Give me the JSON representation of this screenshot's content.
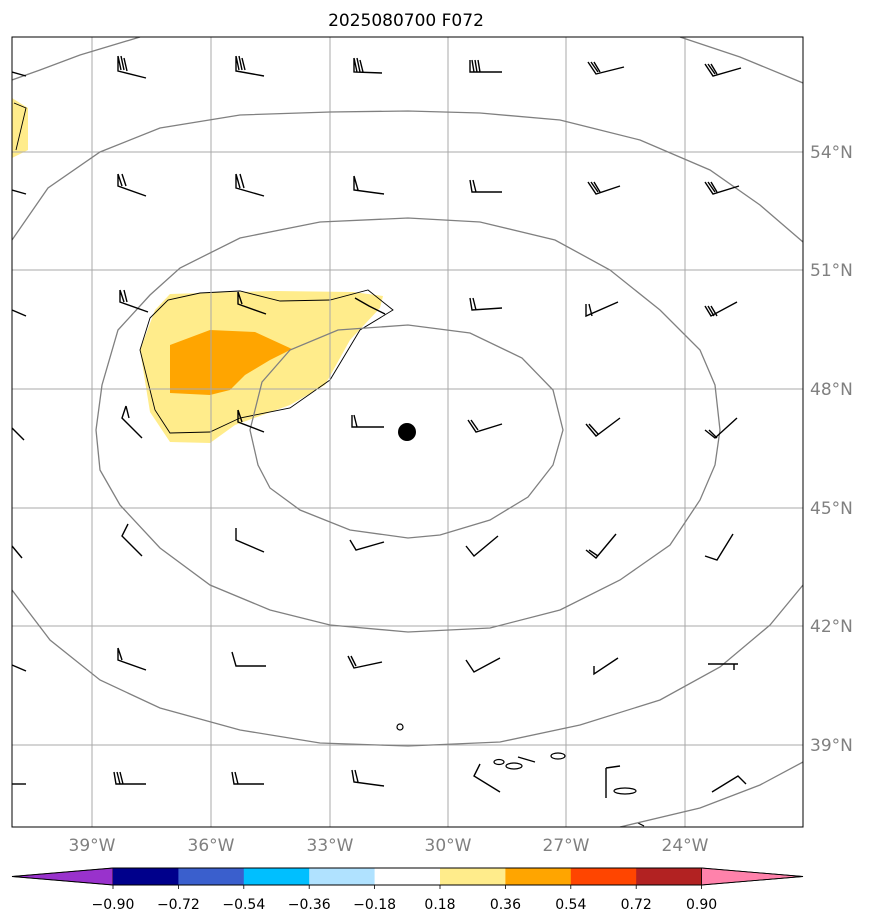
{
  "title": "2025080700 F072",
  "map": {
    "lat_labels": [
      "54°N",
      "51°N",
      "48°N",
      "45°N",
      "42°N",
      "39°N"
    ],
    "lon_labels": [
      "39°W",
      "36°W",
      "33°W",
      "30°W",
      "27°W",
      "24°W"
    ],
    "lat_values": [
      54,
      51,
      48,
      45,
      42,
      39
    ],
    "lon_values": [
      -39,
      -36,
      -33,
      -30,
      -27,
      -24
    ],
    "center_marker": {
      "lon": -31.0,
      "lat": 47.2,
      "color": "#000000"
    },
    "colors": {
      "gridline": "#a8a8a8",
      "contour": "#808080",
      "barb": "#000000",
      "frame": "#000000"
    }
  },
  "colorbar": {
    "colors": [
      "#9932cc",
      "#00008b",
      "#3a5fcd",
      "#00bfff",
      "#b0e2ff",
      "#ffffff",
      "#ffec8b",
      "#ffa500",
      "#ff4500",
      "#b22222",
      "#ff82ab"
    ],
    "labels": [
      "−0.90",
      "−0.72",
      "−0.54",
      "−0.36",
      "−0.18",
      "0.18",
      "0.36",
      "0.54",
      "0.72",
      "0.90"
    ],
    "extend": "both"
  },
  "shading": {
    "level_0.18_color": "#ffec8b",
    "level_0.36_color": "#ffa500"
  }
}
